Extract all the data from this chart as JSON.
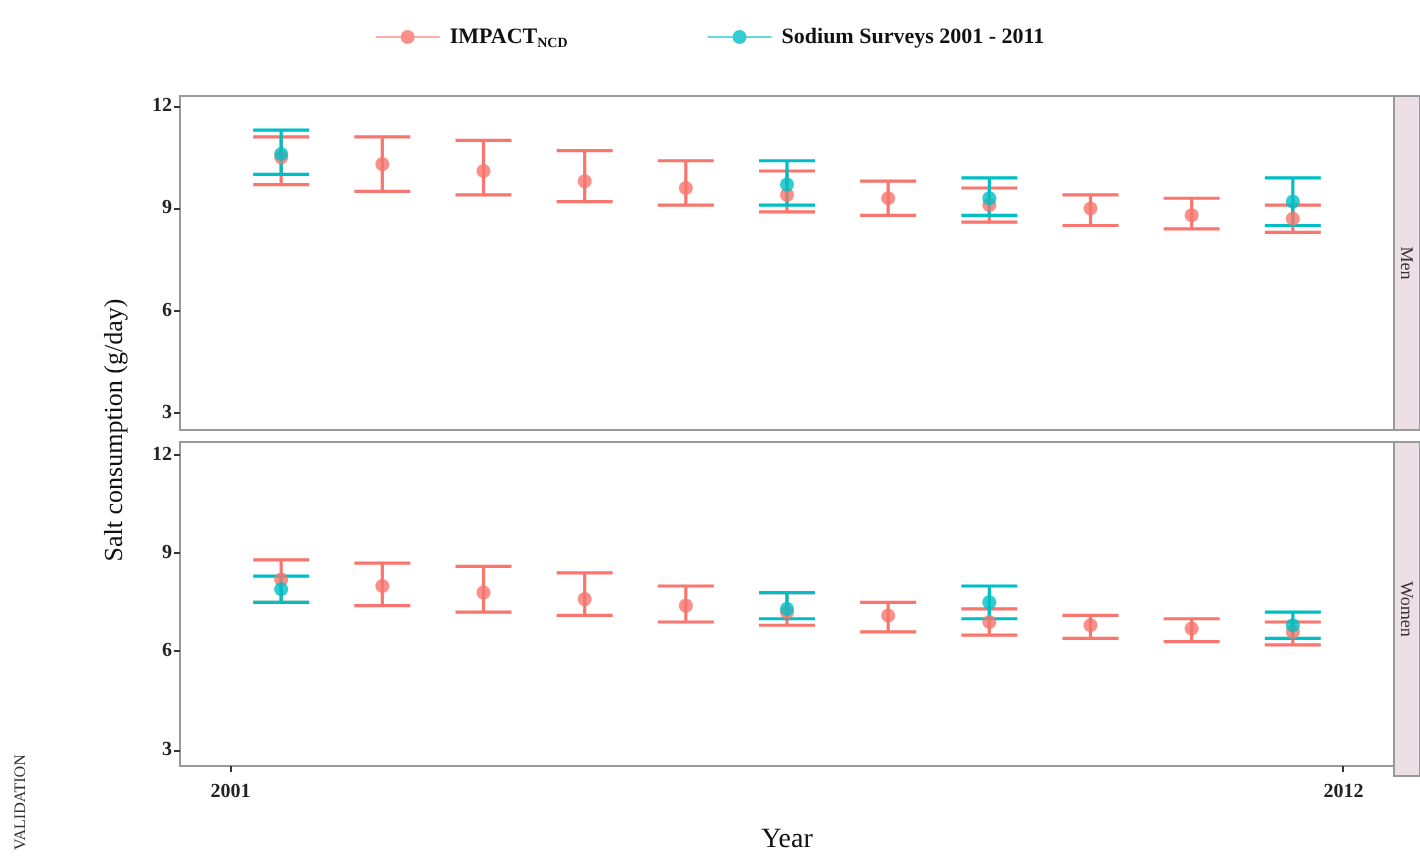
{
  "chart_data": [
    {
      "type": "scatter",
      "title": "Men",
      "legend": "top",
      "marker": "circle",
      "ylabel": "Salt consumption (g/day)",
      "tick_labels": "y",
      "x": [
        2001.5,
        2002.5,
        2003.5,
        2004.5,
        2005.5,
        2006.5,
        2007.5,
        2008.5,
        2009.5,
        2010.5,
        2011.5
      ],
      "xlim": [
        2000.5,
        2012.5
      ],
      "ylim": [
        2.5,
        12.3
      ],
      "yticks": [
        3,
        6,
        9,
        12
      ],
      "series": [
        {
          "name": "IMPACT$_{NCD}$",
          "color": "#f8766d",
          "values": [
            10.5,
            10.3,
            10.1,
            9.8,
            9.6,
            9.4,
            9.3,
            9.1,
            9.0,
            8.8,
            8.7
          ],
          "errors": [
            [
              9.7,
              11.1
            ],
            [
              9.5,
              11.1
            ],
            [
              9.4,
              11.0
            ],
            [
              9.2,
              10.7
            ],
            [
              9.1,
              10.4
            ],
            [
              8.9,
              10.1
            ],
            [
              8.8,
              9.8
            ],
            [
              8.6,
              9.6
            ],
            [
              8.5,
              9.4
            ],
            [
              8.4,
              9.3
            ],
            [
              8.3,
              9.1
            ]
          ]
        },
        {
          "name": "Sodium Surveys 2001 - 2011",
          "color": "#00bfc4",
          "values": [
            10.6,
            null,
            null,
            null,
            null,
            9.7,
            null,
            9.3,
            null,
            null,
            9.2
          ],
          "errors": [
            [
              10.0,
              11.3
            ],
            null,
            null,
            null,
            null,
            [
              9.1,
              10.4
            ],
            null,
            [
              8.8,
              9.9
            ],
            null,
            null,
            [
              8.5,
              9.9
            ]
          ]
        }
      ]
    },
    {
      "type": "scatter",
      "title": "Women",
      "xlabel": "Year",
      "marker": "circle",
      "annotations": [
        "VALIDATION"
      ],
      "x": [
        2001.5,
        2002.5,
        2003.5,
        2004.5,
        2005.5,
        2006.5,
        2007.5,
        2008.5,
        2009.5,
        2010.5,
        2011.5
      ],
      "xlim": [
        2000.5,
        2012.5
      ],
      "xticks": [
        2001,
        2012
      ],
      "ylim": [
        2.5,
        12.4
      ],
      "yticks": [
        3,
        6,
        9,
        12
      ],
      "series": [
        {
          "color": "#f8766d",
          "values": [
            8.2,
            8.0,
            7.8,
            7.6,
            7.4,
            7.2,
            7.1,
            6.9,
            6.8,
            6.7,
            6.6
          ],
          "errors": [
            [
              7.5,
              8.8
            ],
            [
              7.4,
              8.7
            ],
            [
              7.2,
              8.6
            ],
            [
              7.1,
              8.4
            ],
            [
              6.9,
              8.0
            ],
            [
              6.8,
              7.8
            ],
            [
              6.6,
              7.5
            ],
            [
              6.5,
              7.3
            ],
            [
              6.4,
              7.1
            ],
            [
              6.3,
              7.0
            ],
            [
              6.2,
              6.9
            ]
          ]
        },
        {
          "color": "#00bfc4",
          "values": [
            7.9,
            null,
            null,
            null,
            null,
            7.3,
            null,
            7.5,
            null,
            null,
            6.8
          ],
          "errors": [
            [
              7.5,
              8.3
            ],
            null,
            null,
            null,
            null,
            [
              7.0,
              7.8
            ],
            null,
            [
              7.0,
              8.0
            ],
            null,
            null,
            [
              6.4,
              7.2
            ]
          ]
        }
      ]
    }
  ]
}
